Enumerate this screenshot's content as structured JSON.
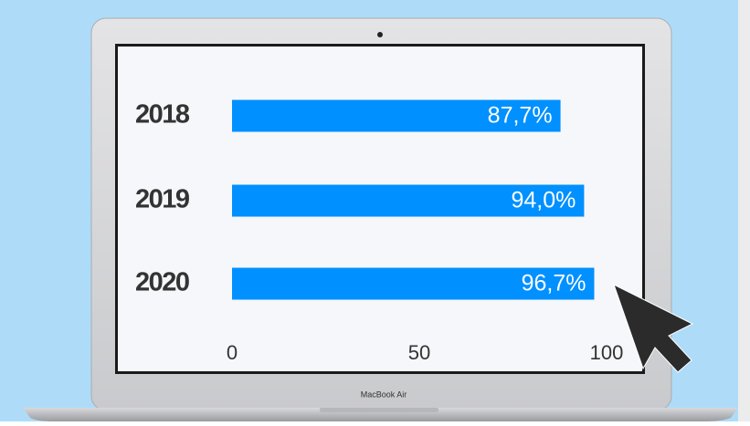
{
  "chart_data": {
    "type": "bar",
    "orientation": "horizontal",
    "categories": [
      "2018",
      "2019",
      "2020"
    ],
    "values": [
      87.7,
      94.0,
      96.7
    ],
    "value_labels": [
      "87,7%",
      "94,0%",
      "96,7%"
    ],
    "color": "#0090ff",
    "xlim": [
      0,
      100
    ],
    "xticks": [
      0,
      50,
      100
    ]
  },
  "device_label": "MacBook Air"
}
